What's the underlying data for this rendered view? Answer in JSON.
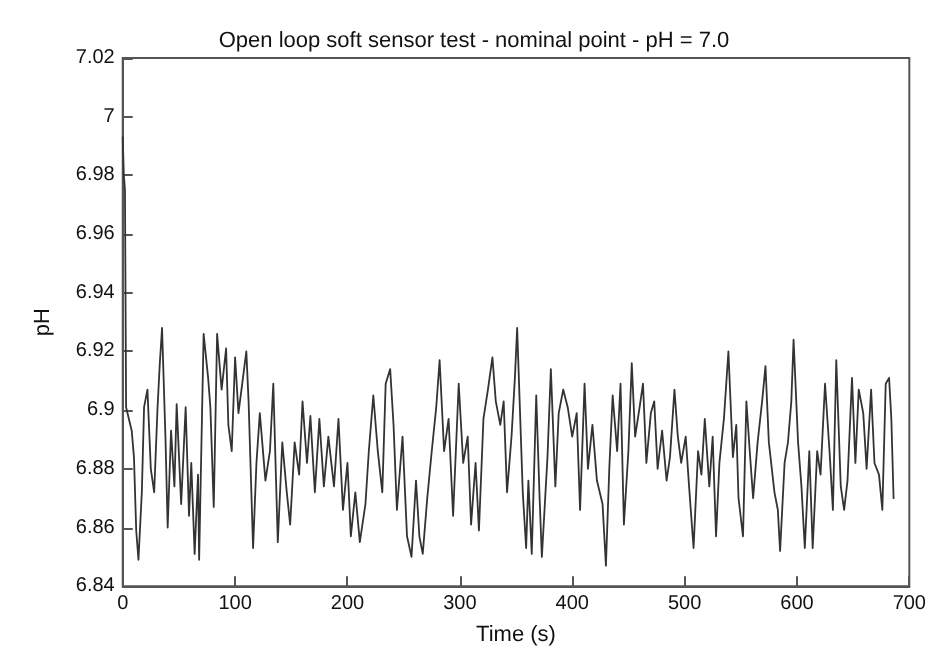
{
  "chart_data": {
    "type": "line",
    "title": "Open loop soft sensor test - nominal point - pH = 7.0",
    "xlabel": "Time (s)",
    "ylabel": "pH",
    "xlim": [
      0,
      700
    ],
    "xticks": [
      0,
      100,
      200,
      300,
      400,
      500,
      600,
      700
    ],
    "ylim": [
      6.84,
      7.02
    ],
    "yticks": [
      6.84,
      6.86,
      6.88,
      6.9,
      6.92,
      6.94,
      6.96,
      6.98,
      7,
      7.02
    ],
    "grid": false,
    "marker": "none",
    "line_style": "solid",
    "x": [
      0,
      1,
      2,
      3,
      8,
      10,
      12,
      14,
      17,
      19,
      22,
      25,
      28,
      31,
      33,
      35,
      38,
      40,
      43,
      46,
      48,
      52,
      56,
      59,
      61,
      64,
      67,
      68,
      72,
      76,
      78,
      81,
      84,
      88,
      92,
      94,
      97,
      100,
      103,
      107,
      110,
      112,
      116,
      119,
      122,
      127,
      131,
      134,
      138,
      142,
      146,
      149,
      153,
      157,
      160,
      164,
      167,
      171,
      175,
      179,
      183,
      188,
      192,
      196,
      200,
      203,
      207,
      211,
      216,
      219,
      223,
      227,
      231,
      234,
      238,
      241,
      244,
      249,
      253,
      257,
      261,
      264,
      267,
      271,
      275,
      279,
      282,
      286,
      290,
      294,
      299,
      303,
      307,
      310,
      314,
      317,
      321,
      325,
      329,
      332,
      336,
      339,
      342,
      346,
      349,
      351,
      356,
      359,
      361,
      364,
      368,
      371,
      373,
      378,
      381,
      385,
      388,
      392,
      396,
      400,
      404,
      407,
      411,
      414,
      418,
      422,
      427,
      430,
      433,
      436,
      440,
      443,
      446,
      450,
      453,
      456,
      460,
      463,
      466,
      470,
      473,
      476,
      480,
      484,
      487,
      491,
      494,
      497,
      501,
      504,
      508,
      512,
      515,
      518,
      522,
      525,
      528,
      531,
      535,
      539,
      543,
      546,
      548,
      552,
      555,
      558,
      561,
      565,
      569,
      572,
      575,
      580,
      583,
      585,
      589,
      592,
      595,
      597,
      601,
      604,
      607,
      611,
      614,
      618,
      621,
      625,
      629,
      632,
      635,
      639,
      642,
      645,
      649,
      652,
      655,
      659,
      662,
      666,
      669,
      673,
      676,
      679,
      682,
      684,
      686
    ],
    "series": [
      {
        "color": "#333333",
        "values": [
          6.993,
          6.98,
          6.975,
          6.901,
          6.893,
          6.884,
          6.859,
          6.849,
          6.872,
          6.901,
          6.907,
          6.88,
          6.872,
          6.901,
          6.916,
          6.928,
          6.891,
          6.86,
          6.893,
          6.874,
          6.902,
          6.868,
          6.901,
          6.864,
          6.882,
          6.851,
          6.878,
          6.849,
          6.926,
          6.911,
          6.901,
          6.867,
          6.926,
          6.907,
          6.921,
          6.895,
          6.886,
          6.918,
          6.899,
          6.911,
          6.92,
          6.903,
          6.853,
          6.882,
          6.899,
          6.876,
          6.886,
          6.909,
          6.855,
          6.889,
          6.872,
          6.861,
          6.889,
          6.878,
          6.903,
          6.882,
          6.898,
          6.872,
          6.897,
          6.874,
          6.891,
          6.874,
          6.897,
          6.866,
          6.882,
          6.857,
          6.872,
          6.855,
          6.868,
          6.886,
          6.905,
          6.886,
          6.872,
          6.909,
          6.914,
          6.895,
          6.866,
          6.891,
          6.857,
          6.85,
          6.876,
          6.857,
          6.851,
          6.87,
          6.886,
          6.901,
          6.917,
          6.886,
          6.897,
          6.864,
          6.909,
          6.882,
          6.891,
          6.861,
          6.882,
          6.859,
          6.897,
          6.907,
          6.918,
          6.903,
          6.895,
          6.903,
          6.872,
          6.891,
          6.911,
          6.928,
          6.872,
          6.853,
          6.876,
          6.851,
          6.905,
          6.87,
          6.85,
          6.884,
          6.914,
          6.874,
          6.899,
          6.907,
          6.901,
          6.891,
          6.899,
          6.866,
          6.909,
          6.88,
          6.895,
          6.876,
          6.868,
          6.847,
          6.88,
          6.905,
          6.886,
          6.909,
          6.861,
          6.886,
          6.916,
          6.891,
          6.901,
          6.909,
          6.882,
          6.899,
          6.903,
          6.88,
          6.893,
          6.876,
          6.884,
          6.907,
          6.891,
          6.882,
          6.891,
          6.874,
          6.853,
          6.886,
          6.878,
          6.897,
          6.874,
          6.891,
          6.857,
          6.882,
          6.897,
          6.92,
          6.884,
          6.895,
          6.87,
          6.857,
          6.903,
          6.886,
          6.87,
          6.889,
          6.903,
          6.915,
          6.889,
          6.872,
          6.866,
          6.852,
          6.882,
          6.889,
          6.903,
          6.924,
          6.889,
          6.874,
          6.853,
          6.886,
          6.853,
          6.886,
          6.878,
          6.909,
          6.886,
          6.866,
          6.917,
          6.874,
          6.866,
          6.876,
          6.911,
          6.882,
          6.907,
          6.899,
          6.88,
          6.907,
          6.882,
          6.878,
          6.866,
          6.909,
          6.911,
          6.897,
          6.87
        ]
      }
    ]
  }
}
